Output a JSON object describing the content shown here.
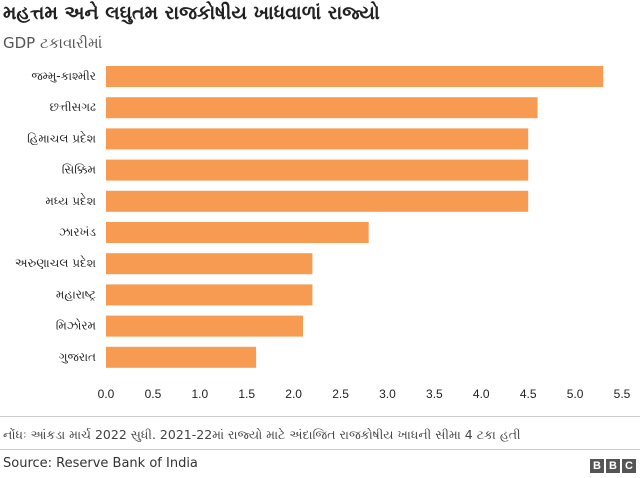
{
  "header": {
    "title": "મહત્તમ અને લઘુતમ રાજકોષીય ખાધવાળાં રાજ્યો",
    "subtitle": "GDP ટકાવારીમાં"
  },
  "chart_data": {
    "type": "bar",
    "orientation": "horizontal",
    "categories": [
      "જમ્મુ-કાશ્મીર",
      "છત્તીસગઢ",
      "હિમાચલ પ્રદેશ",
      "સિક્કિમ",
      "મધ્ય પ્રદેશ",
      "ઝારખંડ",
      "અરુણાચલ પ્રદેશ",
      "મહારાષ્ટ્ર",
      "મિઝોરમ",
      "ગુજરાત"
    ],
    "values": [
      5.3,
      4.6,
      4.5,
      4.5,
      4.5,
      2.8,
      2.2,
      2.2,
      2.1,
      1.6
    ],
    "xlim": [
      0,
      5.5
    ],
    "xticks": [
      "0.0",
      "0.5",
      "1.0",
      "1.5",
      "2.0",
      "2.5",
      "3.0",
      "3.5",
      "4.0",
      "4.5",
      "5.0",
      "5.5"
    ],
    "grid": false,
    "bar_color": "#f79a52",
    "xlabel": "",
    "ylabel": ""
  },
  "footer": {
    "note": "નોંધઃ આંકડા માર્ચ 2022 સુધી. 2021-22માં રાજ્યો માટે અંદાજિત રાજકોષીય ખાધની સીમા 4 ટકા હતી",
    "source": "Source: Reserve Bank of India",
    "logo_letters": [
      "B",
      "B",
      "C"
    ]
  }
}
